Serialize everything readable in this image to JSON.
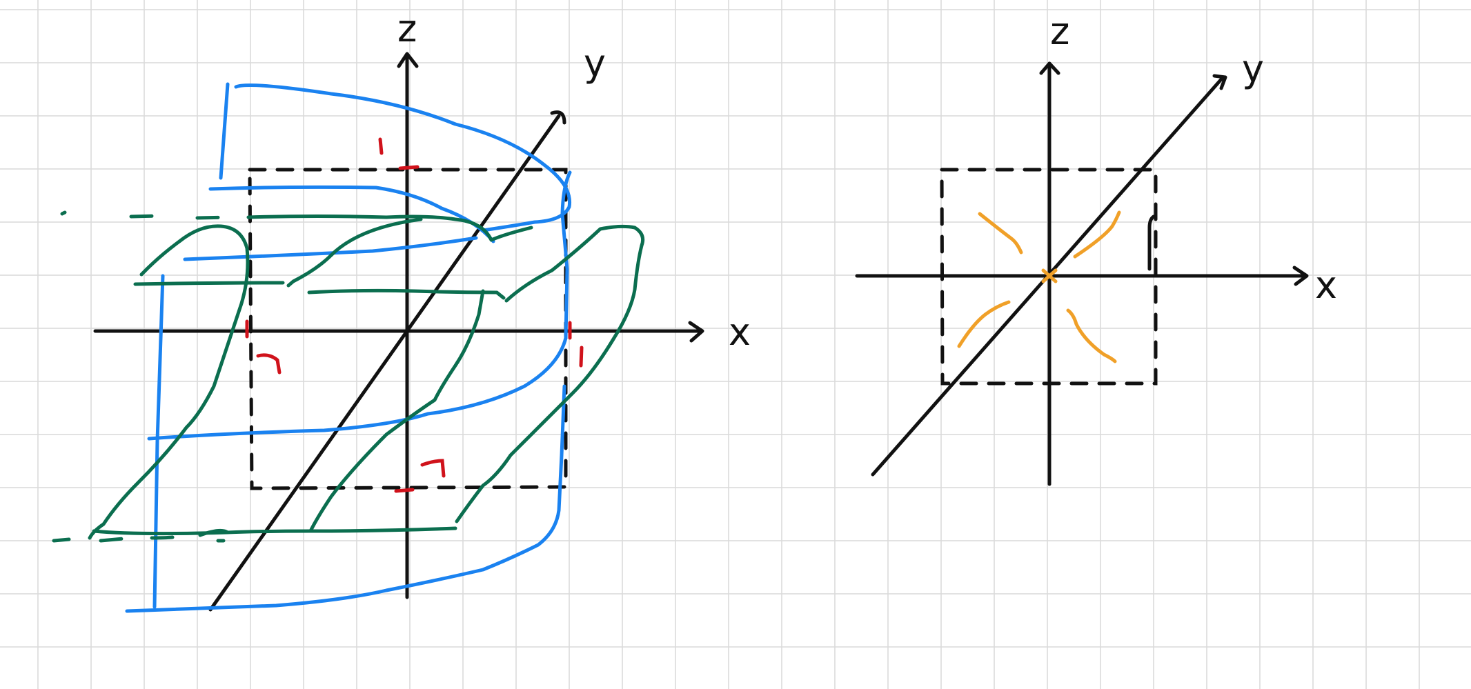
{
  "left_diagram": {
    "axis_labels": {
      "x": "x",
      "y": "y",
      "z": "z"
    },
    "colors": {
      "axes": "#111111",
      "blue": "#1a82f0",
      "green": "#0b6e4f",
      "red": "#d0121b"
    }
  },
  "right_diagram": {
    "axis_labels": {
      "x": "x",
      "y": "y",
      "z": "z"
    },
    "colors": {
      "axes": "#111111",
      "orange": "#f0a028"
    }
  },
  "background": {
    "grid_color": "#d9d9d9",
    "paper_color": "#ffffff"
  }
}
